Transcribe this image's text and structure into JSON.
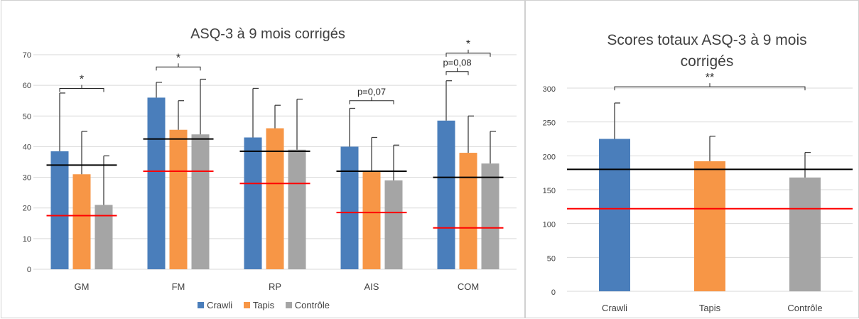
{
  "colors": {
    "crawli": "#4a7ebb",
    "tapis": "#f79646",
    "controle": "#a5a5a5",
    "black_line": "#000000",
    "red_line": "#ff0000",
    "grid": "#d9d9d9",
    "error": "#404040"
  },
  "legend": {
    "items": [
      "Crawli",
      "Tapis",
      "Contrôle"
    ]
  },
  "chart_data": [
    {
      "type": "bar",
      "title": "ASQ-3 à 9 mois corrigés",
      "categories": [
        "GM",
        "FM",
        "RP",
        "AIS",
        "COM"
      ],
      "ylim": [
        0,
        70
      ],
      "yticks": [
        "0",
        "10",
        "20",
        "30",
        "40",
        "50",
        "60",
        "70"
      ],
      "grid": true,
      "legend_position": "bottom",
      "series": [
        {
          "name": "Crawli",
          "values": [
            38.5,
            56,
            43,
            40,
            48.5
          ],
          "error": [
            19,
            5,
            16,
            12.5,
            13
          ]
        },
        {
          "name": "Tapis",
          "values": [
            31,
            45.5,
            46,
            32,
            38
          ],
          "error": [
            14,
            9.5,
            7.5,
            11,
            12
          ]
        },
        {
          "name": "Contrôle",
          "values": [
            21,
            44,
            39,
            29,
            34.5
          ],
          "error": [
            16,
            18,
            16.5,
            11.5,
            10.5
          ]
        }
      ],
      "reference_lines": {
        "black": [
          34,
          42.5,
          38.5,
          32,
          30
        ],
        "red": [
          17.5,
          32,
          28,
          18.5,
          13.5
        ]
      },
      "annotations": [
        {
          "label": "*",
          "category": "GM",
          "from": "Crawli",
          "to": "Contrôle",
          "y": 59
        },
        {
          "label": "*",
          "category": "FM",
          "from": "Crawli",
          "to": "Contrôle",
          "y": 66
        },
        {
          "label": "p=0,07",
          "category": "AIS",
          "from": "Crawli",
          "to": "Contrôle",
          "y": 55
        },
        {
          "label": "*",
          "category": "COM",
          "from": "Crawli",
          "to": "Contrôle",
          "y": 70.5
        },
        {
          "label": "p=0,08",
          "category": "COM",
          "from": "Crawli",
          "to": "Tapis",
          "y": 64.5
        }
      ]
    },
    {
      "type": "bar",
      "title": "Scores totaux ASQ-3 à 9 mois corrigés",
      "title_lines": [
        "Scores totaux ASQ-3 à 9 mois",
        "corrigés"
      ],
      "categories": [
        "Crawli",
        "Tapis",
        "Contrôle"
      ],
      "values": [
        225,
        192,
        168
      ],
      "error": [
        53,
        37,
        37
      ],
      "ylim": [
        0,
        300
      ],
      "yticks": [
        "0",
        "50",
        "100",
        "150",
        "200",
        "250",
        "300"
      ],
      "grid": true,
      "reference_lines": {
        "black": 180,
        "red": 122
      },
      "annotations": [
        {
          "label": "**",
          "from": "Crawli",
          "to": "Contrôle",
          "y": 302
        }
      ]
    }
  ]
}
